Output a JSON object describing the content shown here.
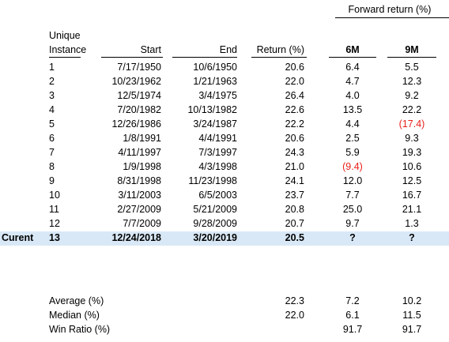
{
  "header": {
    "forward_return": "Forward return (%)",
    "unique": "Unique",
    "instance": "Instance",
    "start": "Start",
    "end": "End",
    "return": "Return (%)",
    "six_m": "6M",
    "nine_m": "9M"
  },
  "rows": [
    {
      "label": "",
      "instance": "1",
      "start": "7/17/1950",
      "end": "10/6/1950",
      "return": "20.6",
      "m6": "6.4",
      "m9": "5.5"
    },
    {
      "label": "",
      "instance": "2",
      "start": "10/23/1962",
      "end": "1/21/1963",
      "return": "22.0",
      "m6": "4.7",
      "m9": "12.3"
    },
    {
      "label": "",
      "instance": "3",
      "start": "12/5/1974",
      "end": "3/4/1975",
      "return": "26.4",
      "m6": "4.0",
      "m9": "9.2"
    },
    {
      "label": "",
      "instance": "4",
      "start": "7/20/1982",
      "end": "10/13/1982",
      "return": "22.6",
      "m6": "13.5",
      "m9": "22.2"
    },
    {
      "label": "",
      "instance": "5",
      "start": "12/26/1986",
      "end": "3/24/1987",
      "return": "22.2",
      "m6": "4.4",
      "m9": "(17.4)"
    },
    {
      "label": "",
      "instance": "6",
      "start": "1/8/1991",
      "end": "4/4/1991",
      "return": "20.6",
      "m6": "2.5",
      "m9": "9.3"
    },
    {
      "label": "",
      "instance": "7",
      "start": "4/11/1997",
      "end": "7/3/1997",
      "return": "24.3",
      "m6": "5.9",
      "m9": "19.3"
    },
    {
      "label": "",
      "instance": "8",
      "start": "1/9/1998",
      "end": "4/3/1998",
      "return": "21.0",
      "m6": "(9.4)",
      "m9": "10.6"
    },
    {
      "label": "",
      "instance": "9",
      "start": "8/31/1998",
      "end": "11/23/1998",
      "return": "24.1",
      "m6": "12.0",
      "m9": "12.5"
    },
    {
      "label": "",
      "instance": "10",
      "start": "3/11/2003",
      "end": "6/5/2003",
      "return": "23.7",
      "m6": "7.7",
      "m9": "16.7"
    },
    {
      "label": "",
      "instance": "11",
      "start": "2/27/2009",
      "end": "5/21/2009",
      "return": "20.8",
      "m6": "25.0",
      "m9": "21.1"
    },
    {
      "label": "",
      "instance": "12",
      "start": "7/7/2009",
      "end": "9/28/2009",
      "return": "20.7",
      "m6": "9.7",
      "m9": "1.3"
    },
    {
      "label": "Curent",
      "instance": "13",
      "start": "12/24/2018",
      "end": "3/20/2019",
      "return": "20.5",
      "m6": "?",
      "m9": "?"
    }
  ],
  "summary": [
    {
      "label": "Average (%)",
      "return": "22.3",
      "m6": "7.2",
      "m9": "10.2"
    },
    {
      "label": "Median (%)",
      "return": "22.0",
      "m6": "6.1",
      "m9": "11.5"
    },
    {
      "label": "Win Ratio (%)",
      "return": "",
      "m6": "91.7",
      "m9": "91.7"
    }
  ],
  "colors": {
    "negative": "#e8201a",
    "highlight": "#d9e8f6"
  }
}
